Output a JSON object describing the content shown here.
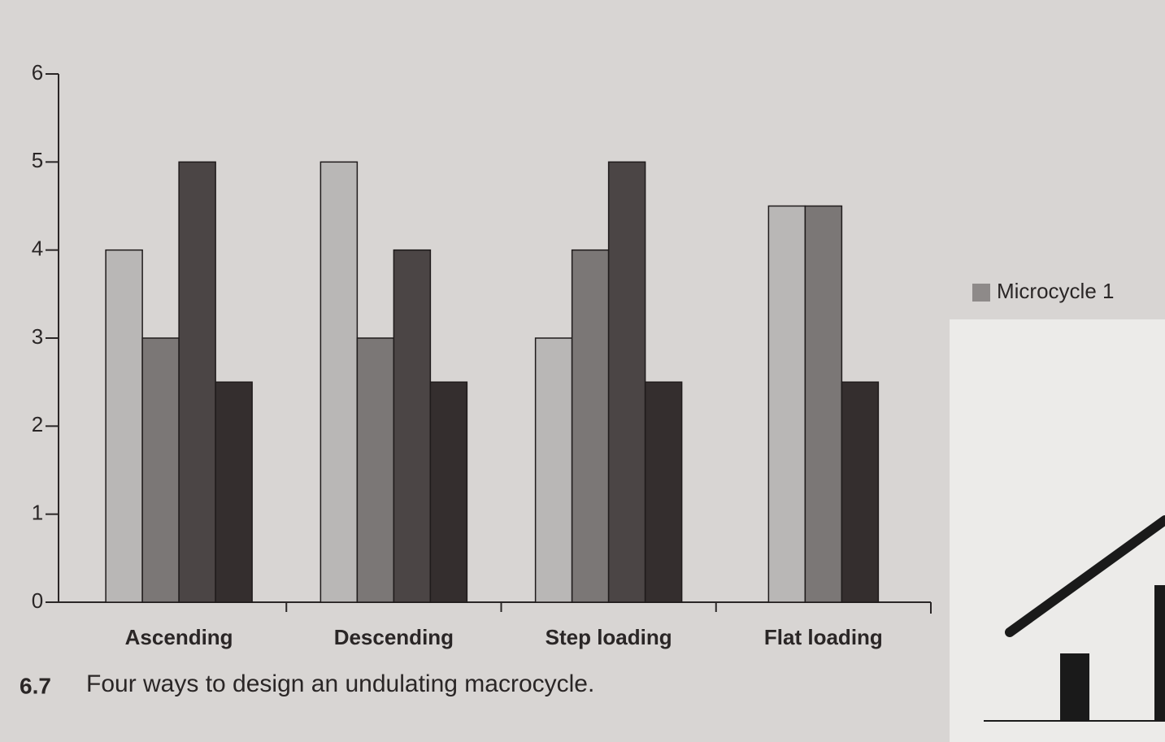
{
  "chart_data": {
    "type": "bar",
    "categories": [
      "Ascending",
      "Descending",
      "Step loading",
      "Flat loading"
    ],
    "series": [
      {
        "name": "Microcycle 1",
        "color": "#b9b7b6",
        "values": [
          4,
          5,
          3,
          4.5
        ]
      },
      {
        "color": "#7b7776",
        "values": [
          3,
          3,
          4,
          4.5
        ]
      },
      {
        "color": "#4b4545",
        "values": [
          5,
          4,
          5,
          null
        ]
      },
      {
        "color": "#342e2e",
        "values": [
          2.5,
          2.5,
          2.5,
          2.5
        ]
      }
    ],
    "ylim": [
      0,
      6
    ],
    "yticks": [
      0,
      1,
      2,
      3,
      4,
      5,
      6
    ],
    "figure_number": "6.7",
    "caption": "Four ways to design an undulating macrocycle."
  }
}
